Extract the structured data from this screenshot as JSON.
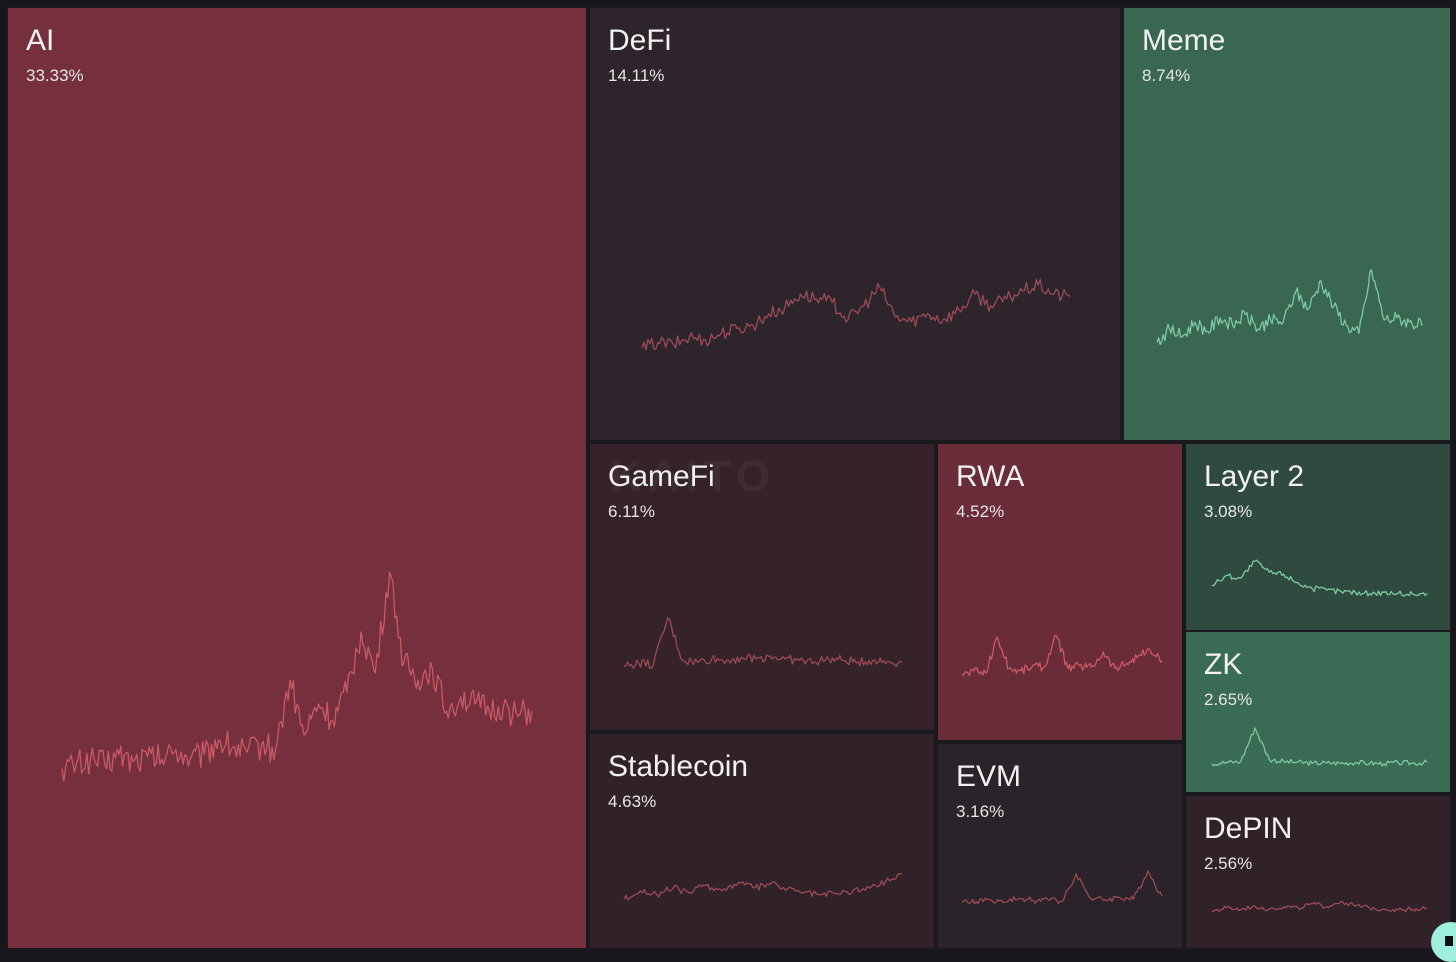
{
  "watermark": "KAITO",
  "colors": {
    "background": "#17171b",
    "strong_negative": "#762f3d",
    "negative": "#692c38",
    "slight_negative": "#352329",
    "dark_negative": "#31222a",
    "neutral": "#2e252c",
    "neutral_dark": "#2a2329",
    "positive": "#396752",
    "slight_positive": "#2f4b40",
    "moderate_positive": "#3a6b54",
    "line_red": "#c95a66",
    "line_dark_red": "#9a4b55",
    "line_green": "#7dc9a3"
  },
  "chart_data": {
    "type": "treemap",
    "metric_unit": "%",
    "items": [
      {
        "name": "AI",
        "value": 33.33,
        "label": "33.33%",
        "fill": "#762f3d",
        "line": "#c95a66",
        "trend": [
          0.18,
          0.2,
          0.22,
          0.2,
          0.24,
          0.21,
          0.23,
          0.22,
          0.26,
          0.22,
          0.24,
          0.3,
          0.27,
          0.25,
          0.28,
          0.26,
          0.55,
          0.32,
          0.45,
          0.38,
          0.5,
          0.75,
          0.58,
          1.0,
          0.62,
          0.55,
          0.6,
          0.42,
          0.48,
          0.45,
          0.42,
          0.44,
          0.4,
          0.42
        ]
      },
      {
        "name": "DeFi",
        "value": 14.11,
        "label": "14.11%",
        "fill": "#2e252c",
        "line": "#9a4b55",
        "trend": [
          0.25,
          0.3,
          0.28,
          0.35,
          0.32,
          0.38,
          0.42,
          0.45,
          0.55,
          0.6,
          0.72,
          0.68,
          0.65,
          0.5,
          0.62,
          0.78,
          0.52,
          0.48,
          0.55,
          0.5,
          0.58,
          0.72,
          0.62,
          0.68,
          0.75,
          0.8,
          0.72,
          0.7
        ]
      },
      {
        "name": "Meme",
        "value": 8.74,
        "label": "8.74%",
        "fill": "#396752",
        "line": "#7dc9a3",
        "trend": [
          0.3,
          0.42,
          0.35,
          0.48,
          0.4,
          0.52,
          0.45,
          0.55,
          0.42,
          0.5,
          0.48,
          0.75,
          0.6,
          0.85,
          0.62,
          0.45,
          0.38,
          0.95,
          0.5,
          0.52,
          0.48,
          0.45
        ]
      },
      {
        "name": "GameFi",
        "value": 6.11,
        "label": "6.11%",
        "fill": "#352329",
        "line": "#9a4b55",
        "trend": [
          0.3,
          0.35,
          0.32,
          0.95,
          0.38,
          0.36,
          0.4,
          0.38,
          0.42,
          0.4,
          0.44,
          0.4,
          0.38,
          0.36,
          0.4,
          0.38,
          0.36,
          0.38,
          0.36,
          0.35
        ]
      },
      {
        "name": "RWA",
        "value": 4.52,
        "label": "4.52%",
        "fill": "#692c38",
        "line": "#c95a66",
        "trend": [
          0.3,
          0.35,
          0.32,
          0.8,
          0.38,
          0.35,
          0.42,
          0.4,
          0.82,
          0.38,
          0.42,
          0.4,
          0.6,
          0.38,
          0.45,
          0.55,
          0.62,
          0.48
        ]
      },
      {
        "name": "Layer 2",
        "value": 3.08,
        "label": "3.08%",
        "fill": "#2f4b40",
        "line": "#7dc9a3",
        "trend": [
          0.35,
          0.55,
          0.5,
          0.85,
          0.62,
          0.58,
          0.4,
          0.28,
          0.25,
          0.22,
          0.2,
          0.18,
          0.2,
          0.18,
          0.16,
          0.18
        ]
      },
      {
        "name": "ZK",
        "value": 2.65,
        "label": "2.65%",
        "fill": "#3a6b54",
        "line": "#7dc9a3",
        "trend": [
          0.15,
          0.18,
          0.2,
          1.0,
          0.25,
          0.2,
          0.18,
          0.16,
          0.17,
          0.16,
          0.18,
          0.16,
          0.15,
          0.17,
          0.16,
          0.18
        ]
      },
      {
        "name": "Stablecoin",
        "value": 4.63,
        "label": "4.63%",
        "fill": "#31222a",
        "line": "#9a4b55",
        "trend": [
          0.3,
          0.45,
          0.38,
          0.5,
          0.42,
          0.55,
          0.45,
          0.6,
          0.5,
          0.58,
          0.48,
          0.42,
          0.38,
          0.4,
          0.45,
          0.5,
          0.62,
          0.75
        ]
      },
      {
        "name": "EVM",
        "value": 3.16,
        "label": "3.16%",
        "fill": "#2a2329",
        "line": "#9a4b55",
        "trend": [
          0.3,
          0.32,
          0.35,
          0.3,
          0.38,
          0.34,
          0.36,
          0.32,
          0.85,
          0.38,
          0.35,
          0.4,
          0.36,
          0.9,
          0.42
        ]
      },
      {
        "name": "DePIN",
        "value": 2.56,
        "label": "2.56%",
        "fill": "#31222a",
        "line": "#9a4b55",
        "trend": [
          0.35,
          0.45,
          0.4,
          0.5,
          0.42,
          0.48,
          0.45,
          0.55,
          0.48,
          0.62,
          0.5,
          0.45,
          0.42,
          0.4,
          0.42,
          0.44
        ]
      }
    ]
  }
}
